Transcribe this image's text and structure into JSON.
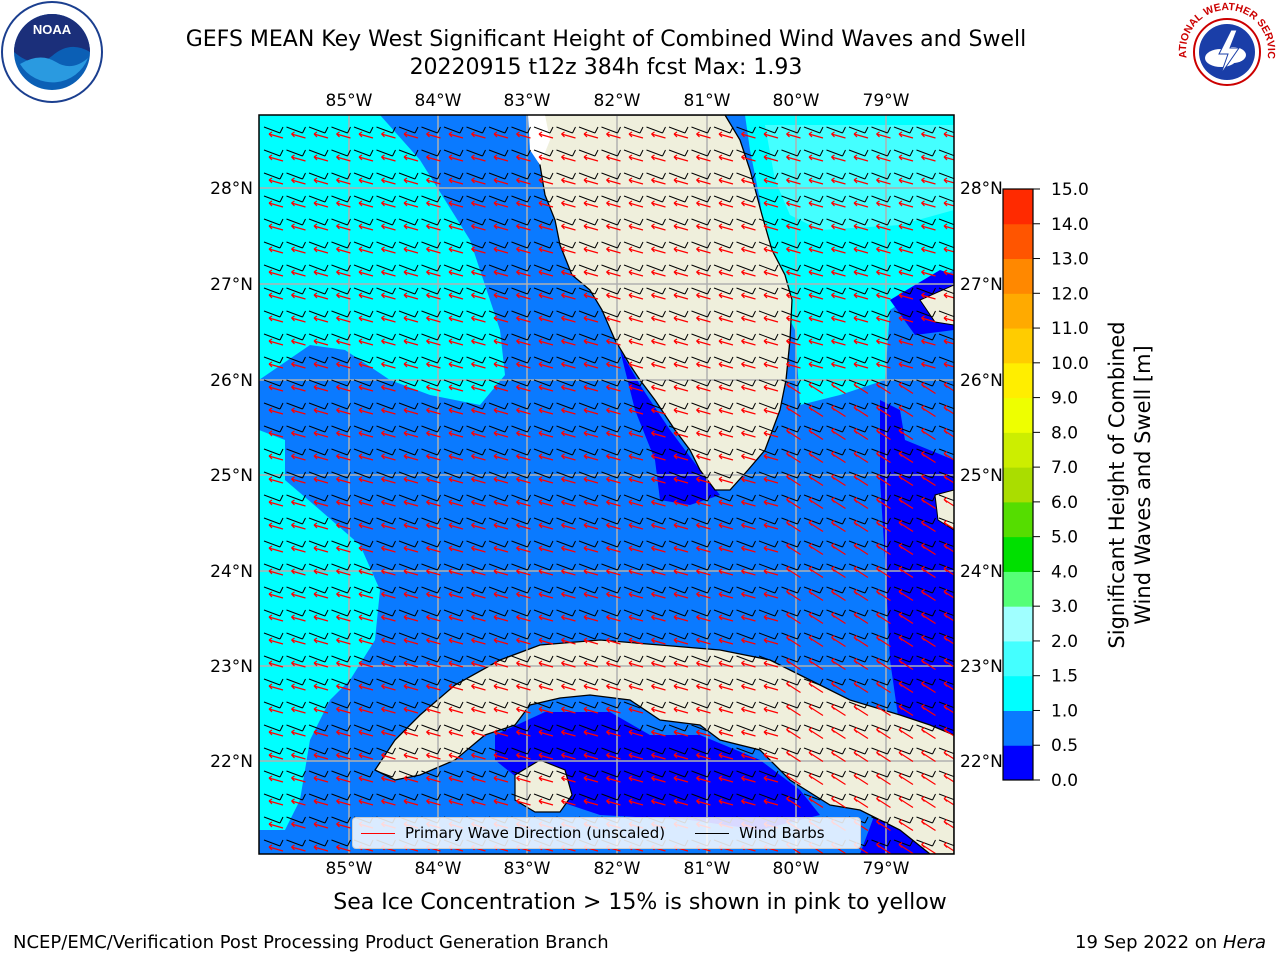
{
  "header": {
    "title_line1": "GEFS MEAN Key West Significant Height of Combined Wind Waves and Swell",
    "title_line2": "20220915 t12z 384h fcst   Max: 1.93"
  },
  "logos": {
    "noaa": "NOAA",
    "nws": "NATIONAL WEATHER SERVICE"
  },
  "map": {
    "top_lon_labels": [
      "85°W",
      "84°W",
      "83°W",
      "82°W",
      "81°W",
      "80°W",
      "79°W"
    ],
    "bottom_lon_labels": [
      "85°W",
      "84°W",
      "83°W",
      "82°W",
      "81°W",
      "80°W",
      "79°W"
    ],
    "left_lat_labels": [
      "28°N",
      "27°N",
      "26°N",
      "25°N",
      "24°N",
      "23°N",
      "22°N"
    ],
    "right_lat_labels": [
      "28°N",
      "27°N",
      "26°N",
      "25°N",
      "24°N",
      "23°N",
      "22°N"
    ],
    "land_color": "#efefdc",
    "wave_arrow_color": "#ff0000",
    "wind_barb_color": "#000000"
  },
  "legend": {
    "wave_label": "Primary Wave Direction (unscaled)",
    "barb_label": "Wind Barbs"
  },
  "colorbar": {
    "title_line1": "Significant Height of Combined",
    "title_line2": "Wind Waves and Swell [m]",
    "tick_labels": [
      "0.0",
      "0.5",
      "1.0",
      "1.5",
      "2.0",
      "3.0",
      "4.0",
      "5.0",
      "6.0",
      "7.0",
      "8.0",
      "9.0",
      "10.0",
      "11.0",
      "12.0",
      "13.0",
      "14.0",
      "15.0"
    ],
    "colors": [
      "#0000ff",
      "#0a7aff",
      "#00ffff",
      "#44ffff",
      "#a0ffff",
      "#55ff77",
      "#00e000",
      "#55dd00",
      "#aadd00",
      "#ccee00",
      "#eeff00",
      "#ffee00",
      "#ffcc00",
      "#ffaa00",
      "#ff8800",
      "#ff5500",
      "#ff2a00"
    ]
  },
  "footer": {
    "note": "Sea Ice Concentration > 15% is shown in pink to yellow",
    "left": "NCEP/EMC/Verification Post Processing Product Generation Branch",
    "right_date": "19 Sep 2022 on ",
    "right_host": "Hera"
  }
}
